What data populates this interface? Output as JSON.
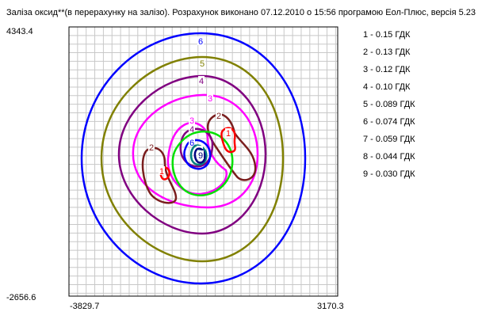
{
  "chart_data": {
    "type": "contour",
    "title": "Заліза оксид**(в перерахунку на залізо). Розрахунок виконано 07.12.2010 о 15:56 програмою Еол-Плюс, версія 5.23",
    "y_max_label": "4343.4",
    "y_min_label": "-2656.6",
    "x_min_label": "-3829.7",
    "x_max_label": "3170.3",
    "xlim": [
      -3829.7,
      3170.3
    ],
    "ylim": [
      -2656.6,
      4343.4
    ],
    "grid": true,
    "legend_position": "right",
    "levels": [
      {
        "id": "1",
        "label": "1 - 0.15 ГДК",
        "color": "#ff0000"
      },
      {
        "id": "2",
        "label": "2 - 0.13 ГДК",
        "color": "#7a1e1e"
      },
      {
        "id": "3",
        "label": "3 - 0.12 ГДК",
        "color": "#ff00ff"
      },
      {
        "id": "4",
        "label": "4 - 0.10 ГДК",
        "color": "#800080"
      },
      {
        "id": "5",
        "label": "5 - 0.089 ГДК",
        "color": "#808000"
      },
      {
        "id": "6",
        "label": "6 - 0.074 ГДК",
        "color": "#0000ff"
      },
      {
        "id": "7",
        "label": "7 - 0.059 ГДК",
        "color": "#00e000"
      },
      {
        "id": "8",
        "label": "8 - 0.044 ГДК",
        "color": "#008080"
      },
      {
        "id": "9",
        "label": "9 - 0.030 ГДК",
        "color": "#000080"
      }
    ]
  }
}
